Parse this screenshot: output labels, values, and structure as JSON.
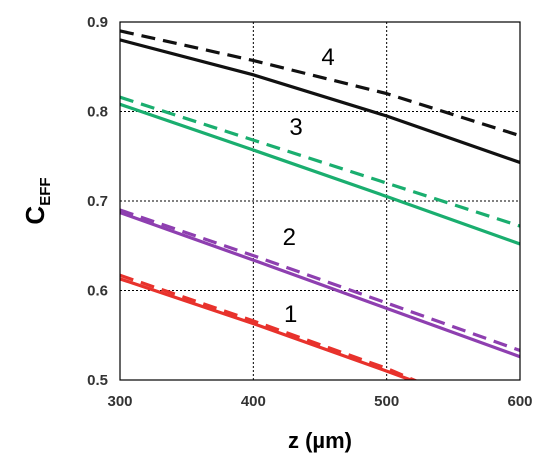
{
  "chart_data": {
    "type": "line",
    "xlabel": "z (µm)",
    "ylabel": {
      "main": "C",
      "sub": "EFF"
    },
    "xlim": [
      300,
      600
    ],
    "ylim": [
      0.5,
      0.9
    ],
    "grid": true,
    "x_ticks": [
      "300",
      "400",
      "500",
      "600"
    ],
    "y_ticks": [
      "0.5",
      "0.6",
      "0.7",
      "0.8",
      "0.9"
    ],
    "series": [
      {
        "curve": "1",
        "style": "solid",
        "color": "#e8322c",
        "x": [
          300,
          400,
          500,
          520
        ],
        "y": [
          0.613,
          0.563,
          0.51,
          0.499
        ]
      },
      {
        "curve": "1",
        "style": "dashed",
        "color": "#e8322c",
        "x": [
          300,
          400,
          500,
          522
        ],
        "y": [
          0.617,
          0.566,
          0.513,
          0.499
        ]
      },
      {
        "curve": "2",
        "style": "solid",
        "color": "#8e3fb0",
        "x": [
          300,
          400,
          500,
          600
        ],
        "y": [
          0.687,
          0.634,
          0.58,
          0.526
        ]
      },
      {
        "curve": "2",
        "style": "dashed",
        "color": "#8e3fb0",
        "x": [
          300,
          400,
          500,
          600
        ],
        "y": [
          0.69,
          0.639,
          0.586,
          0.533
        ]
      },
      {
        "curve": "3",
        "style": "solid",
        "color": "#1aae6f",
        "x": [
          300,
          400,
          500,
          600
        ],
        "y": [
          0.808,
          0.757,
          0.705,
          0.652
        ]
      },
      {
        "curve": "3",
        "style": "dashed",
        "color": "#1aae6f",
        "x": [
          300,
          400,
          500,
          600
        ],
        "y": [
          0.816,
          0.768,
          0.72,
          0.672
        ]
      },
      {
        "curve": "4",
        "style": "solid",
        "color": "#111111",
        "x": [
          300,
          400,
          500,
          600
        ],
        "y": [
          0.88,
          0.841,
          0.795,
          0.743
        ]
      },
      {
        "curve": "4",
        "style": "dashed",
        "color": "#111111",
        "x": [
          300,
          400,
          500,
          600
        ],
        "y": [
          0.89,
          0.857,
          0.82,
          0.773
        ]
      }
    ],
    "curve_labels": [
      {
        "text": "1",
        "x": 428,
        "y": 0.565
      },
      {
        "text": "2",
        "x": 427,
        "y": 0.651
      },
      {
        "text": "3",
        "x": 432,
        "y": 0.774
      },
      {
        "text": "4",
        "x": 456,
        "y": 0.852
      }
    ]
  }
}
